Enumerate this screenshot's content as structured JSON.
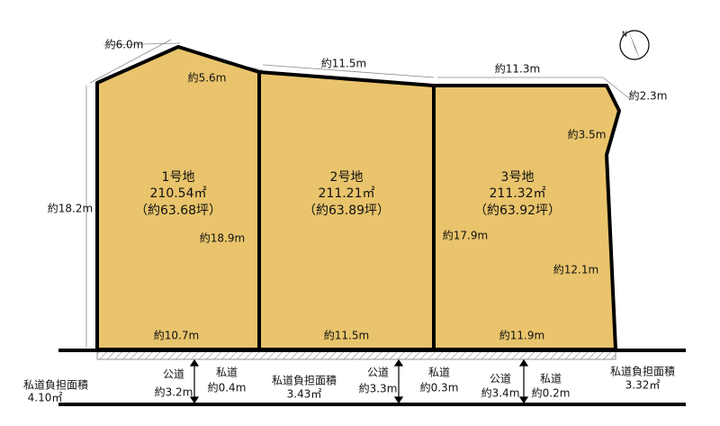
{
  "plots": [
    {
      "name": "1号地",
      "area": "210.54㎡",
      "tsubo": "（約63.68坪）"
    },
    {
      "name": "2号地",
      "area": "211.21㎡",
      "tsubo": "（約63.89坪）"
    },
    {
      "name": "3号地",
      "area": "211.32㎡",
      "tsubo": "（約63.92坪）"
    }
  ],
  "dimensions": [
    "約6.0m",
    "約5.6m",
    "約11.5m",
    "約11.3m",
    "約2.3m",
    "約3.5m",
    "約18.2m",
    "約18.9m",
    "約17.9m",
    "約12.1m",
    "約10.7m",
    "約11.5m",
    "約11.9m"
  ],
  "road_notes": [
    {
      "label": "私道負担面積",
      "value": "4.10㎡"
    },
    {
      "label": "私道負担面積",
      "value": "3.43㎡"
    },
    {
      "label": "私道負担面積",
      "value": "3.32㎡"
    }
  ],
  "roads": [
    {
      "public": "公道",
      "public_width": "約3.2m",
      "private": "私道",
      "private_width": "約0.4m"
    },
    {
      "public": "公道",
      "public_width": "約3.3m",
      "private": "私道",
      "private_width": "約0.3m"
    },
    {
      "public": "公道",
      "public_width": "約3.4m",
      "private": "私道",
      "private_width": "約0.2m"
    }
  ]
}
